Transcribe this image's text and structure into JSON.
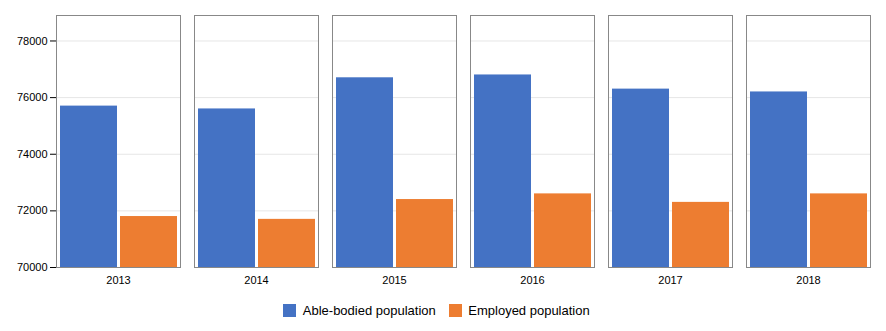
{
  "chart_data": {
    "type": "bar",
    "categories": [
      "2013",
      "2014",
      "2015",
      "2016",
      "2017",
      "2018"
    ],
    "series": [
      {
        "name": "Able-bodied population",
        "color": "#4472C4",
        "values": [
          75700,
          75600,
          76700,
          76800,
          76300,
          76200
        ]
      },
      {
        "name": "Employed population",
        "color": "#ED7D31",
        "values": [
          71800,
          71700,
          72400,
          72600,
          72300,
          72600
        ]
      }
    ],
    "ylim": [
      70000,
      78900
    ],
    "yticks": [
      70000,
      72000,
      74000,
      76000,
      78000
    ],
    "grid": true,
    "legend": "bottom"
  }
}
